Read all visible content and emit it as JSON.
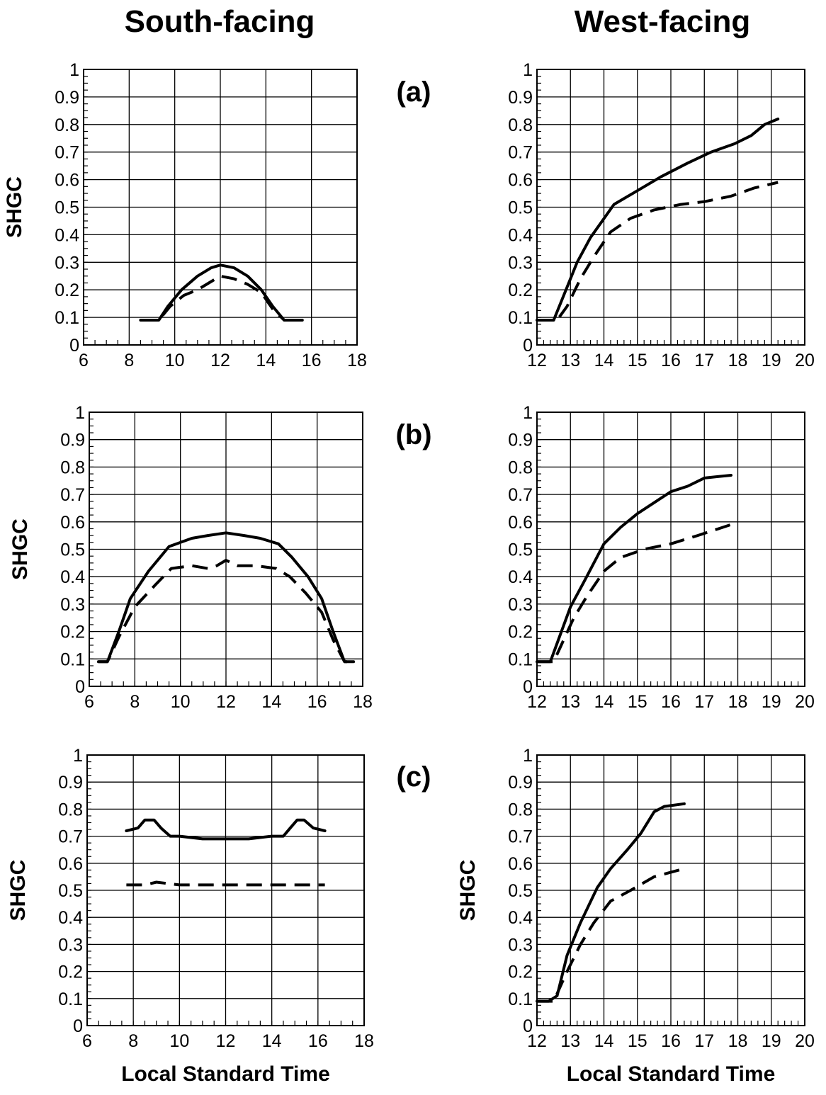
{
  "column_titles": {
    "left": "South-facing",
    "right": "West-facing"
  },
  "row_labels": [
    "(a)",
    "(b)",
    "(c)"
  ],
  "chart_data": [
    {
      "id": "south-a",
      "type": "line",
      "ylabel": "SHGC",
      "xlabel": "",
      "xlim": [
        6,
        18
      ],
      "ylim": [
        0,
        1
      ],
      "xticks": [
        6,
        8,
        10,
        12,
        14,
        16,
        18
      ],
      "yticks": [
        0,
        0.1,
        0.2,
        0.3,
        0.4,
        0.5,
        0.6,
        0.7,
        0.8,
        0.9,
        1
      ],
      "series": [
        {
          "style": "solid",
          "x": [
            8.5,
            9.3,
            9.7,
            10.3,
            11,
            11.6,
            12,
            12.6,
            13.2,
            13.8,
            14.3,
            14.8,
            15.6
          ],
          "y": [
            0.09,
            0.09,
            0.14,
            0.2,
            0.25,
            0.28,
            0.29,
            0.28,
            0.25,
            0.2,
            0.14,
            0.09,
            0.09
          ]
        },
        {
          "style": "dashed",
          "x": [
            8.5,
            9.3,
            9.8,
            10.4,
            11,
            11.6,
            12,
            12.6,
            13.2,
            13.8,
            14.3,
            14.8,
            15.6
          ],
          "y": [
            0.09,
            0.09,
            0.14,
            0.18,
            0.2,
            0.23,
            0.25,
            0.24,
            0.22,
            0.19,
            0.13,
            0.09,
            0.09
          ]
        }
      ]
    },
    {
      "id": "west-a",
      "type": "line",
      "ylabel": "",
      "xlabel": "",
      "xlim": [
        12,
        20
      ],
      "ylim": [
        0,
        1
      ],
      "xticks": [
        12,
        13,
        14,
        15,
        16,
        17,
        18,
        19,
        20
      ],
      "yticks": [
        0,
        0.1,
        0.2,
        0.3,
        0.4,
        0.5,
        0.6,
        0.7,
        0.8,
        0.9,
        1
      ],
      "series": [
        {
          "style": "solid",
          "x": [
            12.0,
            12.5,
            12.8,
            13.2,
            13.6,
            14.3,
            15.0,
            15.7,
            16.5,
            17.2,
            17.9,
            18.4,
            18.8,
            19.2
          ],
          "y": [
            0.09,
            0.09,
            0.18,
            0.3,
            0.39,
            0.51,
            0.56,
            0.61,
            0.66,
            0.7,
            0.73,
            0.76,
            0.8,
            0.82
          ]
        },
        {
          "style": "dashed",
          "x": [
            12.0,
            12.6,
            12.9,
            13.3,
            13.7,
            14.2,
            14.8,
            15.5,
            16.3,
            17.0,
            17.8,
            18.5,
            19.2
          ],
          "y": [
            0.09,
            0.09,
            0.14,
            0.24,
            0.32,
            0.41,
            0.46,
            0.49,
            0.51,
            0.52,
            0.54,
            0.57,
            0.59
          ]
        }
      ]
    },
    {
      "id": "south-b",
      "type": "line",
      "ylabel": "SHGC",
      "xlabel": "",
      "xlim": [
        6,
        18
      ],
      "ylim": [
        0,
        1
      ],
      "xticks": [
        6,
        8,
        10,
        12,
        14,
        16,
        18
      ],
      "yticks": [
        0,
        0.1,
        0.2,
        0.3,
        0.4,
        0.5,
        0.6,
        0.7,
        0.8,
        0.9,
        1
      ],
      "series": [
        {
          "style": "solid",
          "x": [
            6.4,
            6.8,
            7.3,
            7.8,
            8.6,
            9.5,
            10.5,
            11.2,
            12,
            12.8,
            13.5,
            14.3,
            14.9,
            15.6,
            16.2,
            16.7,
            17.2,
            17.6
          ],
          "y": [
            0.09,
            0.09,
            0.2,
            0.32,
            0.42,
            0.51,
            0.54,
            0.55,
            0.56,
            0.55,
            0.54,
            0.52,
            0.47,
            0.4,
            0.32,
            0.2,
            0.09,
            0.09
          ]
        },
        {
          "style": "dashed",
          "x": [
            6.4,
            6.8,
            7.3,
            8.0,
            8.9,
            9.6,
            10.5,
            11.2,
            11.6,
            12,
            12.5,
            13.3,
            14.2,
            14.8,
            15.5,
            16.2,
            16.7,
            17.2,
            17.6
          ],
          "y": [
            0.09,
            0.09,
            0.18,
            0.29,
            0.37,
            0.43,
            0.44,
            0.43,
            0.44,
            0.46,
            0.44,
            0.44,
            0.43,
            0.4,
            0.34,
            0.27,
            0.17,
            0.09,
            0.09
          ]
        }
      ]
    },
    {
      "id": "west-b",
      "type": "line",
      "ylabel": "",
      "xlabel": "",
      "xlim": [
        12,
        20
      ],
      "ylim": [
        0,
        1
      ],
      "xticks": [
        12,
        13,
        14,
        15,
        16,
        17,
        18,
        19,
        20
      ],
      "yticks": [
        0,
        0.1,
        0.2,
        0.3,
        0.4,
        0.5,
        0.6,
        0.7,
        0.8,
        0.9,
        1
      ],
      "series": [
        {
          "style": "solid",
          "x": [
            12.0,
            12.4,
            12.7,
            13.0,
            13.4,
            14.0,
            14.5,
            15.0,
            15.5,
            16.0,
            16.5,
            17.0,
            17.8
          ],
          "y": [
            0.09,
            0.09,
            0.19,
            0.29,
            0.38,
            0.52,
            0.58,
            0.63,
            0.67,
            0.71,
            0.73,
            0.76,
            0.77
          ]
        },
        {
          "style": "dashed",
          "x": [
            12.0,
            12.5,
            12.8,
            13.1,
            13.5,
            14.0,
            14.5,
            15.2,
            16.0,
            16.8,
            17.8
          ],
          "y": [
            0.09,
            0.09,
            0.17,
            0.25,
            0.33,
            0.42,
            0.47,
            0.5,
            0.52,
            0.55,
            0.59
          ]
        }
      ]
    },
    {
      "id": "south-c",
      "type": "line",
      "ylabel": "SHGC",
      "xlabel": "Local Standard Time",
      "xlim": [
        6,
        18
      ],
      "ylim": [
        0,
        1
      ],
      "xticks": [
        6,
        8,
        10,
        12,
        14,
        16,
        18
      ],
      "yticks": [
        0,
        0.1,
        0.2,
        0.3,
        0.4,
        0.5,
        0.6,
        0.7,
        0.8,
        0.9,
        1
      ],
      "series": [
        {
          "style": "solid",
          "x": [
            7.7,
            8.2,
            8.5,
            8.9,
            9.2,
            9.6,
            10.0,
            11.0,
            12.0,
            13.0,
            14.0,
            14.5,
            14.8,
            15.1,
            15.4,
            15.8,
            16.3
          ],
          "y": [
            0.72,
            0.73,
            0.76,
            0.76,
            0.73,
            0.7,
            0.7,
            0.69,
            0.69,
            0.69,
            0.7,
            0.7,
            0.73,
            0.76,
            0.76,
            0.73,
            0.72
          ]
        },
        {
          "style": "dashed",
          "x": [
            7.7,
            8.5,
            9.0,
            10.0,
            11.0,
            12.0,
            13.0,
            14.0,
            15.0,
            15.8,
            16.3
          ],
          "y": [
            0.52,
            0.52,
            0.53,
            0.52,
            0.52,
            0.52,
            0.52,
            0.52,
            0.52,
            0.52,
            0.52
          ]
        }
      ]
    },
    {
      "id": "west-c",
      "type": "line",
      "ylabel": "SHGC",
      "xlabel": "Local Standard Time",
      "xlim": [
        12,
        20
      ],
      "ylim": [
        0,
        1
      ],
      "xticks": [
        12,
        13,
        14,
        15,
        16,
        17,
        18,
        19,
        20
      ],
      "yticks": [
        0,
        0.1,
        0.2,
        0.3,
        0.4,
        0.5,
        0.6,
        0.7,
        0.8,
        0.9,
        1
      ],
      "series": [
        {
          "style": "solid",
          "x": [
            12.0,
            12.35,
            12.6,
            12.9,
            13.3,
            13.8,
            14.2,
            14.7,
            15.1,
            15.5,
            15.8,
            16.4
          ],
          "y": [
            0.09,
            0.09,
            0.11,
            0.26,
            0.38,
            0.51,
            0.58,
            0.65,
            0.71,
            0.79,
            0.81,
            0.82
          ]
        },
        {
          "style": "dashed",
          "x": [
            12.0,
            12.5,
            12.9,
            13.3,
            13.7,
            14.2,
            14.8,
            15.5,
            16.4
          ],
          "y": [
            0.09,
            0.09,
            0.2,
            0.3,
            0.38,
            0.46,
            0.5,
            0.55,
            0.58
          ]
        }
      ]
    }
  ]
}
